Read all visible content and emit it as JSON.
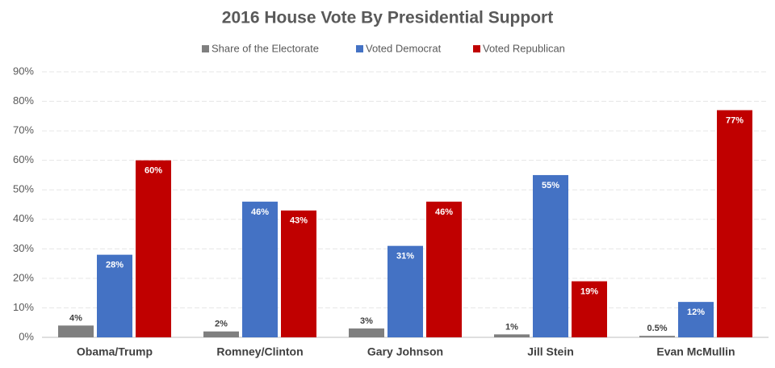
{
  "chart_data": {
    "type": "bar",
    "title": "2016 House Vote By Presidential Support",
    "categories": [
      "Obama/Trump",
      "Romney/Clinton",
      "Gary Johnson",
      "Jill Stein",
      "Evan McMullin"
    ],
    "series": [
      {
        "name": "Share of the Electorate",
        "color": "#7f7f7f",
        "values": [
          4,
          2,
          3,
          1,
          0.5
        ],
        "value_labels": [
          "4%",
          "2%",
          "3%",
          "1%",
          "0.5%"
        ]
      },
      {
        "name": "Voted Democrat",
        "color": "#4472c4",
        "values": [
          28,
          46,
          31,
          55,
          12
        ],
        "value_labels": [
          "28%",
          "46%",
          "31%",
          "55%",
          "12%"
        ]
      },
      {
        "name": "Voted Republican",
        "color": "#c00000",
        "values": [
          60,
          43,
          46,
          19,
          77
        ],
        "value_labels": [
          "60%",
          "43%",
          "46%",
          "19%",
          "77%"
        ]
      }
    ],
    "ylim": [
      0,
      90
    ],
    "yticks": [
      {
        "value": 0,
        "label": "0%"
      },
      {
        "value": 10,
        "label": "10%"
      },
      {
        "value": 20,
        "label": "20%"
      },
      {
        "value": 30,
        "label": "30%"
      },
      {
        "value": 40,
        "label": "40%"
      },
      {
        "value": 50,
        "label": "50%"
      },
      {
        "value": 60,
        "label": "60%"
      },
      {
        "value": 70,
        "label": "70%"
      },
      {
        "value": 80,
        "label": "80%"
      },
      {
        "value": 90,
        "label": "90%"
      }
    ],
    "grid": true,
    "legend": "top"
  }
}
